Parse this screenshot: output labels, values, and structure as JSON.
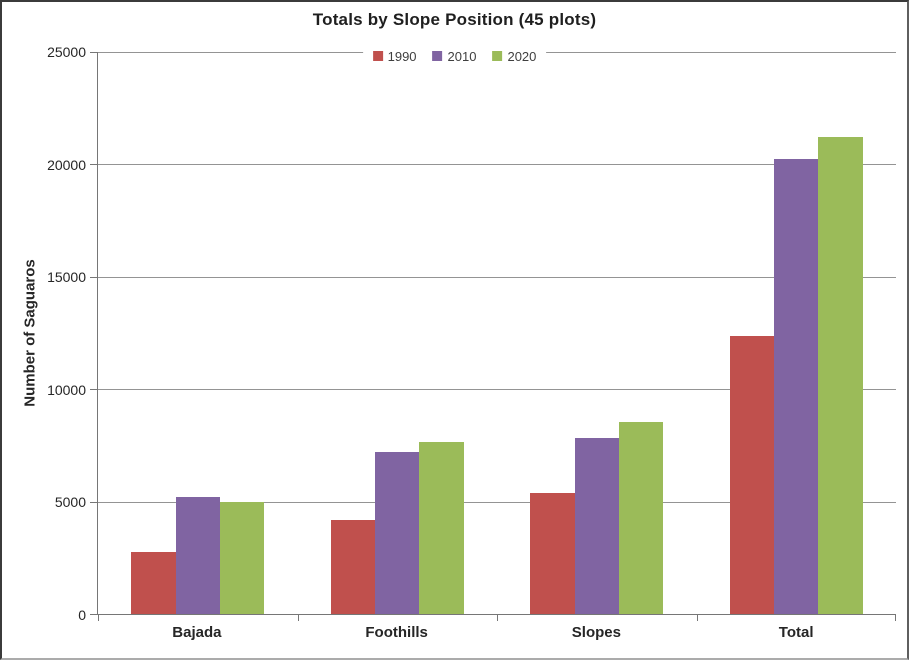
{
  "chart_data": {
    "type": "bar",
    "title": "Totals by Slope Position (45 plots)",
    "ylabel": "Number of Saguaros",
    "xlabel": "",
    "categories": [
      "Bajada",
      "Foothills",
      "Slopes",
      "Total"
    ],
    "series": [
      {
        "name": "1990",
        "color": "#C0504D",
        "values": [
          2750,
          4200,
          5400,
          12350
        ]
      },
      {
        "name": "2010",
        "color": "#8064A2",
        "values": [
          5200,
          7200,
          7850,
          20250
        ]
      },
      {
        "name": "2020",
        "color": "#9BBB59",
        "values": [
          5000,
          7650,
          8550,
          21200
        ]
      }
    ],
    "ylim": [
      0,
      25000
    ],
    "yticks": [
      0,
      5000,
      10000,
      15000,
      20000,
      25000
    ],
    "grid": "horizontal",
    "legend_position": "top-center",
    "style": {
      "background": "#FFFFFF",
      "axis_color": "#767676",
      "gridline_color": "#949494",
      "text_color": "#262626"
    }
  }
}
